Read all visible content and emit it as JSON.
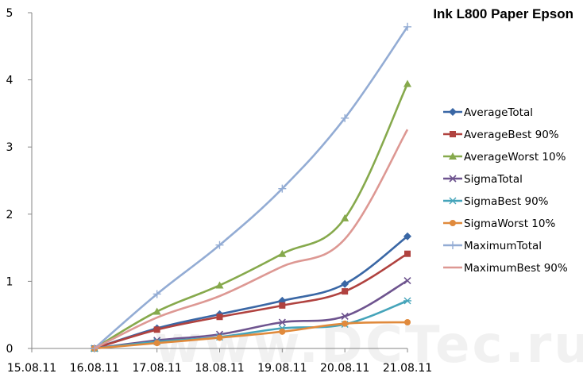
{
  "chart_data": {
    "type": "line",
    "title": "Ink L800 Paper Epson",
    "x": [
      "15.08.11",
      "16.08.11",
      "17.08.11",
      "18.08.11",
      "19.08.11",
      "20.08.11",
      "21.08.11"
    ],
    "ylim": [
      0,
      5
    ],
    "yticks": [
      "0",
      "1",
      "2",
      "3",
      "4",
      "5"
    ],
    "grid": false,
    "legend_position": "right",
    "watermark": "www.DCTec.ru",
    "series": [
      {
        "name": "AverageTotal",
        "color": "#3a67a5",
        "marker": "diamond",
        "values": [
          null,
          0,
          0.3,
          0.51,
          0.71,
          0.96,
          1.67
        ]
      },
      {
        "name": "AverageBest 90%",
        "color": "#b0423f",
        "marker": "square",
        "values": [
          null,
          0,
          0.28,
          0.47,
          0.64,
          0.85,
          1.41
        ]
      },
      {
        "name": "AverageWorst 10%",
        "color": "#86a94c",
        "marker": "triangle",
        "values": [
          null,
          0,
          0.55,
          0.94,
          1.41,
          1.94,
          3.94
        ]
      },
      {
        "name": "SigmaTotal",
        "color": "#6e548f",
        "marker": "x",
        "values": [
          null,
          0,
          0.12,
          0.21,
          0.39,
          0.48,
          1.01
        ]
      },
      {
        "name": "SigmaBest 90%",
        "color": "#45a4ba",
        "marker": "star",
        "values": [
          null,
          0,
          0.1,
          0.17,
          0.3,
          0.36,
          0.71
        ]
      },
      {
        "name": "SigmaWorst 10%",
        "color": "#e08a3c",
        "marker": "circle",
        "values": [
          null,
          0,
          0.08,
          0.16,
          0.25,
          0.37,
          0.39
        ]
      },
      {
        "name": "MaximumTotal",
        "color": "#93acd4",
        "marker": "plus",
        "values": [
          null,
          0,
          0.81,
          1.54,
          2.38,
          3.43,
          4.79
        ]
      },
      {
        "name": "MaximumBest 90%",
        "color": "#dd9893",
        "marker": "none",
        "values": [
          null,
          0,
          0.46,
          0.78,
          1.22,
          1.63,
          3.26
        ]
      }
    ]
  }
}
